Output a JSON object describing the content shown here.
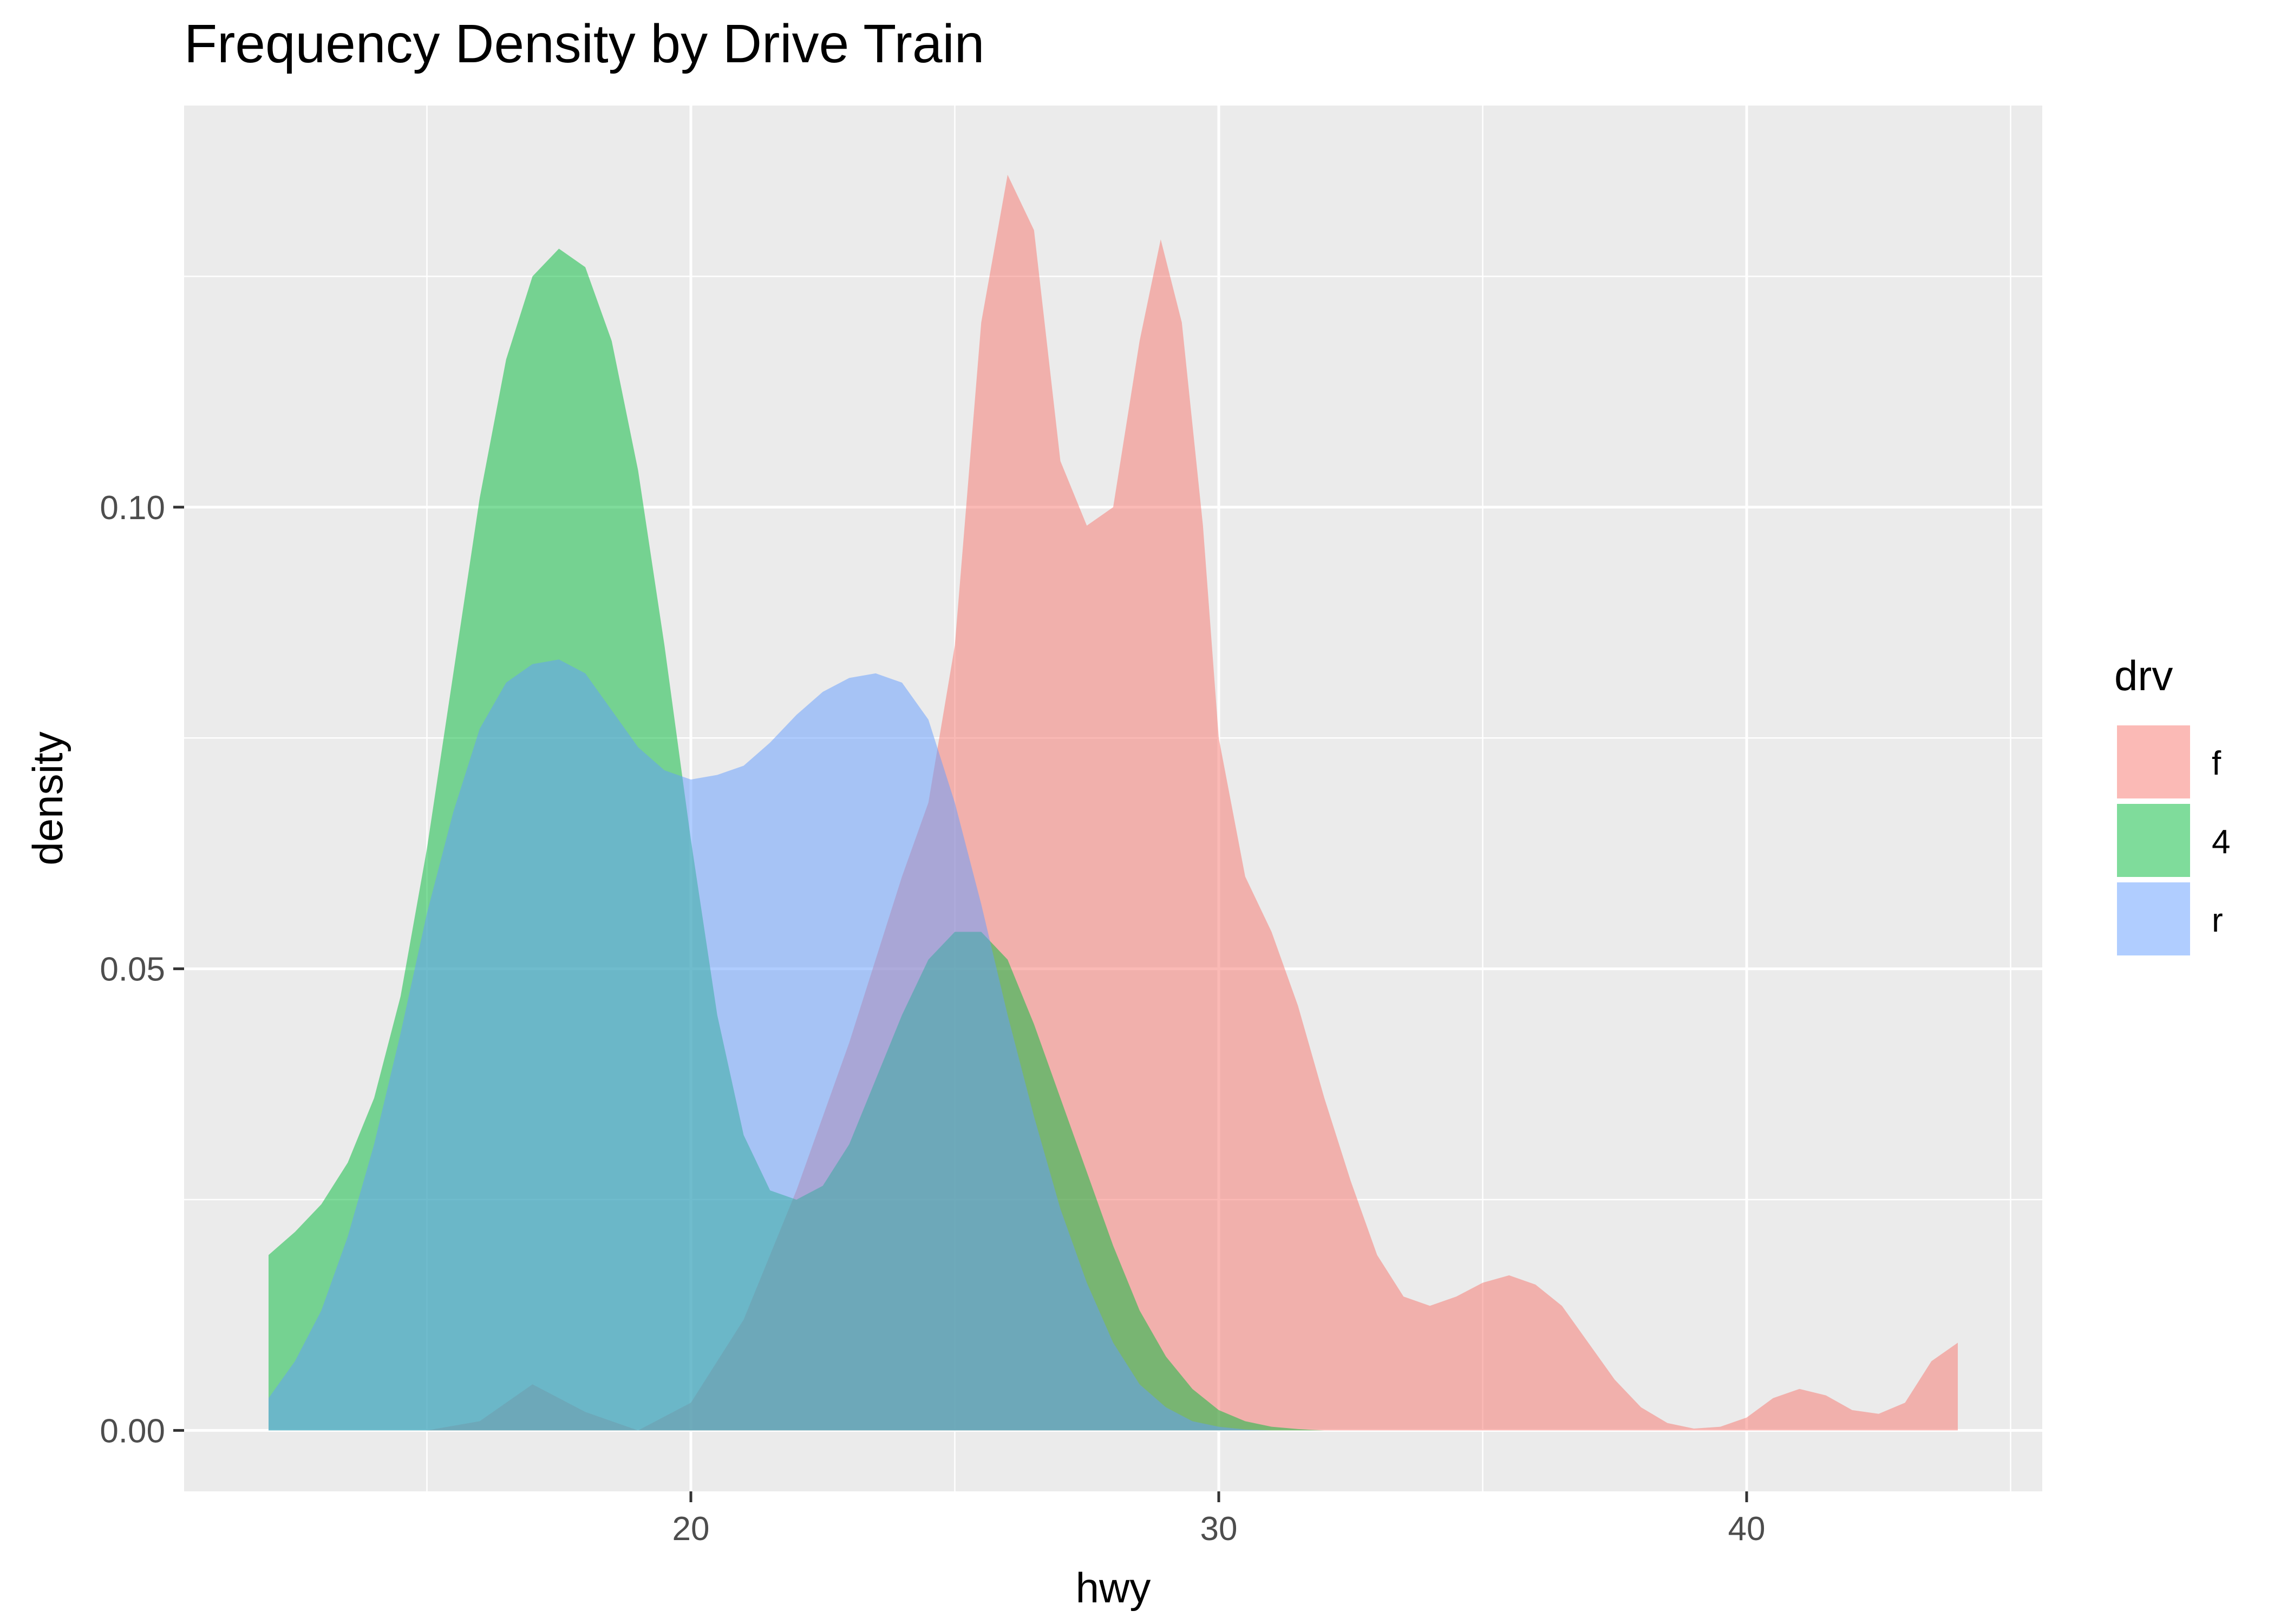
{
  "chart_data": {
    "type": "area",
    "title": "Frequency Density by Drive Train",
    "xlabel": "hwy",
    "ylabel": "density",
    "xlim": [
      10.4,
      45.6
    ],
    "ylim": [
      -0.0066,
      0.1435
    ],
    "x_ticks": [
      20,
      30,
      40
    ],
    "x_tick_labels": [
      "20",
      "30",
      "40"
    ],
    "x_minor_ticks": [
      15,
      25,
      35,
      45
    ],
    "y_ticks": [
      0.0,
      0.05,
      0.1
    ],
    "y_tick_labels": [
      "0.00",
      "0.05",
      "0.10"
    ],
    "y_minor_ticks": [
      0.025,
      0.075,
      0.125
    ],
    "grid": true,
    "legend": {
      "title": "drv",
      "position": "right",
      "entries": [
        "f",
        "4",
        "r"
      ]
    },
    "series": [
      {
        "name": "f",
        "color": "#F8766D",
        "points": [
          [
            12,
            0.0
          ],
          [
            13,
            0.0
          ],
          [
            14,
            0.0
          ],
          [
            15,
            0.0
          ],
          [
            16,
            0.001
          ],
          [
            17,
            0.005
          ],
          [
            18,
            0.002
          ],
          [
            19,
            0.0
          ],
          [
            20,
            0.003
          ],
          [
            21,
            0.012
          ],
          [
            22,
            0.026
          ],
          [
            23,
            0.042
          ],
          [
            24,
            0.06
          ],
          [
            24.5,
            0.068
          ],
          [
            25,
            0.085
          ],
          [
            25.5,
            0.12
          ],
          [
            26,
            0.136
          ],
          [
            26.5,
            0.13
          ],
          [
            27,
            0.105
          ],
          [
            27.5,
            0.098
          ],
          [
            28,
            0.1
          ],
          [
            28.5,
            0.118
          ],
          [
            28.9,
            0.129
          ],
          [
            29.3,
            0.12
          ],
          [
            29.7,
            0.098
          ],
          [
            30,
            0.075
          ],
          [
            30.5,
            0.06
          ],
          [
            31,
            0.054
          ],
          [
            31.5,
            0.046
          ],
          [
            32,
            0.036
          ],
          [
            32.5,
            0.027
          ],
          [
            33,
            0.019
          ],
          [
            33.5,
            0.0145
          ],
          [
            34,
            0.0135
          ],
          [
            34.5,
            0.0145
          ],
          [
            35,
            0.016
          ],
          [
            35.5,
            0.0168
          ],
          [
            36,
            0.0158
          ],
          [
            36.5,
            0.0135
          ],
          [
            37,
            0.0095
          ],
          [
            37.5,
            0.0055
          ],
          [
            38,
            0.0025
          ],
          [
            38.5,
            0.0008
          ],
          [
            39,
            0.0002
          ],
          [
            39.5,
            0.0004
          ],
          [
            40,
            0.0014
          ],
          [
            40.5,
            0.0035
          ],
          [
            41,
            0.0045
          ],
          [
            41.5,
            0.0038
          ],
          [
            42,
            0.0022
          ],
          [
            42.5,
            0.0018
          ],
          [
            43,
            0.003
          ],
          [
            43.5,
            0.0075
          ],
          [
            44,
            0.0095
          ]
        ]
      },
      {
        "name": "4",
        "color": "#00BA38",
        "points": [
          [
            12,
            0.019
          ],
          [
            12.5,
            0.0215
          ],
          [
            13,
            0.0245
          ],
          [
            13.5,
            0.029
          ],
          [
            14,
            0.036
          ],
          [
            14.5,
            0.047
          ],
          [
            15,
            0.063
          ],
          [
            15.5,
            0.082
          ],
          [
            16,
            0.101
          ],
          [
            16.5,
            0.116
          ],
          [
            17,
            0.125
          ],
          [
            17.5,
            0.128
          ],
          [
            18,
            0.126
          ],
          [
            18.5,
            0.118
          ],
          [
            19,
            0.104
          ],
          [
            19.5,
            0.085
          ],
          [
            20,
            0.064
          ],
          [
            20.5,
            0.045
          ],
          [
            21,
            0.032
          ],
          [
            21.5,
            0.026
          ],
          [
            22,
            0.025
          ],
          [
            22.5,
            0.0265
          ],
          [
            23,
            0.031
          ],
          [
            23.5,
            0.038
          ],
          [
            24,
            0.045
          ],
          [
            24.5,
            0.051
          ],
          [
            25,
            0.054
          ],
          [
            25.5,
            0.054
          ],
          [
            26,
            0.051
          ],
          [
            26.5,
            0.044
          ],
          [
            27,
            0.036
          ],
          [
            27.5,
            0.028
          ],
          [
            28,
            0.02
          ],
          [
            28.5,
            0.013
          ],
          [
            29,
            0.008
          ],
          [
            29.5,
            0.0045
          ],
          [
            30,
            0.0022
          ],
          [
            30.5,
            0.001
          ],
          [
            31,
            0.0004
          ],
          [
            31.5,
            0.00015
          ],
          [
            32,
            0.0
          ]
        ]
      },
      {
        "name": "r",
        "color": "#619CFF",
        "points": [
          [
            12,
            0.0035
          ],
          [
            12.5,
            0.0075
          ],
          [
            13,
            0.013
          ],
          [
            13.5,
            0.021
          ],
          [
            14,
            0.031
          ],
          [
            14.5,
            0.043
          ],
          [
            15,
            0.056
          ],
          [
            15.5,
            0.067
          ],
          [
            16,
            0.076
          ],
          [
            16.5,
            0.081
          ],
          [
            17,
            0.083
          ],
          [
            17.5,
            0.0835
          ],
          [
            18,
            0.082
          ],
          [
            18.5,
            0.078
          ],
          [
            19,
            0.074
          ],
          [
            19.5,
            0.0715
          ],
          [
            20,
            0.0705
          ],
          [
            20.5,
            0.071
          ],
          [
            21,
            0.072
          ],
          [
            21.5,
            0.0745
          ],
          [
            22,
            0.0775
          ],
          [
            22.5,
            0.08
          ],
          [
            23,
            0.0815
          ],
          [
            23.5,
            0.082
          ],
          [
            24,
            0.081
          ],
          [
            24.5,
            0.077
          ],
          [
            25,
            0.068
          ],
          [
            25.5,
            0.057
          ],
          [
            26,
            0.045
          ],
          [
            26.5,
            0.034
          ],
          [
            27,
            0.024
          ],
          [
            27.5,
            0.016
          ],
          [
            28,
            0.0095
          ],
          [
            28.5,
            0.005
          ],
          [
            29,
            0.0025
          ],
          [
            29.5,
            0.001
          ],
          [
            30,
            0.0004
          ],
          [
            30.5,
            0.0001
          ],
          [
            31,
            0.0
          ]
        ]
      }
    ]
  }
}
